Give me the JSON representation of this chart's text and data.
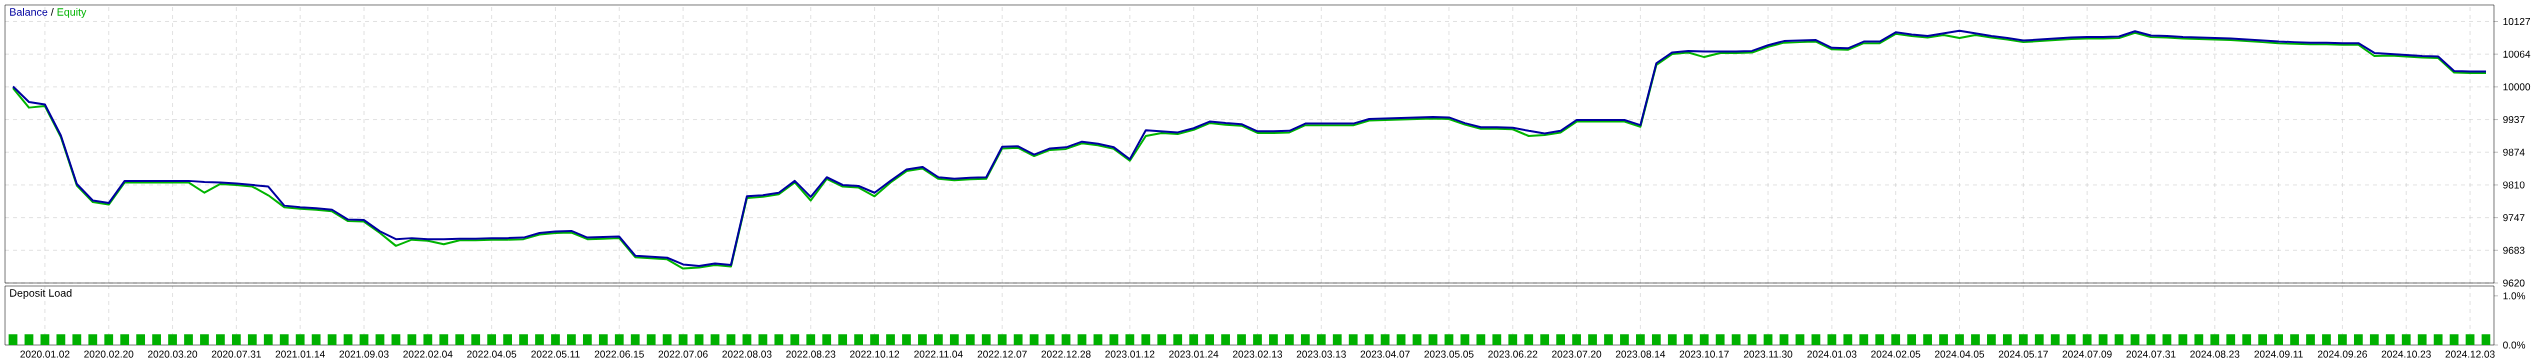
{
  "chart_data": [
    {
      "type": "line",
      "legend": "top left",
      "grid": true,
      "line_style": "solid",
      "tick_labels": "y",
      "annotations": [
        "/"
      ],
      "ylim": [
        9620,
        10159
      ],
      "categories": [
        null,
        null,
        "2020.01.02",
        null,
        null,
        null,
        "2020.02.20",
        null,
        null,
        null,
        "2020.03.20",
        null,
        null,
        null,
        "2020.07.31",
        null,
        null,
        null,
        "2021.01.14",
        null,
        null,
        null,
        "2021.09.03",
        null,
        null,
        null,
        "2022.02.04",
        null,
        null,
        null,
        "2022.04.05",
        null,
        null,
        null,
        "2022.05.11",
        null,
        null,
        null,
        "2022.06.15",
        null,
        null,
        null,
        "2022.07.06",
        null,
        null,
        null,
        "2022.08.03",
        null,
        null,
        null,
        "2022.08.23",
        null,
        null,
        null,
        "2022.10.12",
        null,
        null,
        null,
        "2022.11.04",
        null,
        null,
        null,
        "2022.12.07",
        null,
        null,
        null,
        "2022.12.28",
        null,
        null,
        null,
        "2023.01.12",
        null,
        null,
        null,
        "2023.01.24",
        null,
        null,
        null,
        "2023.02.13",
        null,
        null,
        null,
        "2023.03.13",
        null,
        null,
        null,
        "2023.04.07",
        null,
        null,
        null,
        "2023.05.05",
        null,
        null,
        null,
        "2023.06.22",
        null,
        null,
        null,
        "2023.07.20",
        null,
        null,
        null,
        "2023.08.14",
        null,
        null,
        null,
        "2023.10.17",
        null,
        null,
        null,
        "2023.11.30",
        null,
        null,
        null,
        "2024.01.03",
        null,
        null,
        null,
        "2024.02.05",
        null,
        null,
        null,
        "2024.04.05",
        null,
        null,
        null,
        "2024.05.17",
        null,
        null,
        null,
        "2024.07.09",
        null,
        null,
        null,
        "2024.07.31",
        null,
        null,
        null,
        "2024.08.23",
        null,
        null,
        null,
        "2024.09.11",
        null,
        null,
        null,
        "2024.09.26",
        null,
        null,
        null,
        "2024.10.23",
        null,
        null,
        null,
        "2024.12.03",
        null
      ],
      "yticks": [
        9620,
        {
          "value": 9683.375,
          "label": "9683"
        },
        {
          "value": 9746.75,
          "label": "9747"
        },
        {
          "value": 9810.125,
          "label": "9810"
        },
        {
          "value": 9873.5,
          "label": "9874"
        },
        {
          "value": 9936.875,
          "label": "9937"
        },
        {
          "value": 10000.25,
          "label": "10000"
        },
        {
          "value": 10063.625,
          "label": "10064"
        },
        10127
      ],
      "series": [
        {
          "name": "Balance",
          "color": "#0000a0",
          "values": [
            10001,
            9971,
            9966,
            9906,
            9812,
            9780,
            9775,
            9818,
            9818,
            9818,
            9818,
            9818,
            9816,
            9815,
            9813,
            9810,
            9807,
            9770,
            9767,
            9765,
            9762,
            9743,
            9742,
            9720,
            9705,
            9707,
            9705,
            9705,
            9706,
            9706,
            9707,
            9707,
            9708,
            9717,
            9720,
            9721,
            9708,
            9709,
            9710,
            9673,
            9671,
            9669,
            9656,
            9653,
            9658,
            9655,
            9788,
            9790,
            9795,
            9818,
            9787,
            9825,
            9810,
            9808,
            9795,
            9818,
            9840,
            9845,
            9825,
            9822,
            9824,
            9825,
            9884,
            9885,
            9869,
            9881,
            9883,
            9894,
            9890,
            9883,
            9860,
            9916,
            9914,
            9912,
            9920,
            9933,
            9930,
            9928,
            9914,
            9914,
            9915,
            9929,
            9929,
            9929,
            9929,
            9938,
            9939,
            9940,
            9941,
            9942,
            9941,
            9930,
            9922,
            9922,
            9921,
            9915,
            9910,
            9915,
            9936,
            9936,
            9936,
            9936,
            9926,
            10046,
            10067,
            10070,
            10069,
            10069,
            10069,
            10070,
            10081,
            10089,
            10090,
            10091,
            10076,
            10075,
            10088,
            10088,
            10106,
            10102,
            10099,
            10104,
            10109,
            10104,
            10099,
            10095,
            10090,
            10092,
            10094,
            10096,
            10097,
            10097,
            10098,
            10108,
            10100,
            10099,
            10097,
            10096,
            10095,
            10094,
            10092,
            10090,
            10088,
            10087,
            10086,
            10086,
            10085,
            10085,
            10066,
            10064,
            10062,
            10060,
            10059,
            10031,
            10030,
            10030
          ]
        },
        {
          "name": "Equity",
          "color": "#00b400",
          "values": [
            9998,
            9960,
            9963,
            9903,
            9809,
            9777,
            9772,
            9815,
            9815,
            9815,
            9815,
            9815,
            9795,
            9812,
            9810,
            9807,
            9790,
            9767,
            9764,
            9762,
            9759,
            9740,
            9739,
            9717,
            9692,
            9704,
            9702,
            9695,
            9703,
            9703,
            9704,
            9704,
            9705,
            9714,
            9717,
            9718,
            9705,
            9706,
            9707,
            9670,
            9668,
            9666,
            9648,
            9650,
            9655,
            9652,
            9785,
            9787,
            9792,
            9815,
            9780,
            9822,
            9807,
            9805,
            9788,
            9815,
            9837,
            9842,
            9822,
            9819,
            9821,
            9822,
            9881,
            9882,
            9866,
            9878,
            9880,
            9891,
            9887,
            9880,
            9857,
            9905,
            9911,
            9909,
            9917,
            9930,
            9927,
            9925,
            9911,
            9911,
            9912,
            9926,
            9926,
            9926,
            9926,
            9935,
            9936,
            9937,
            9938,
            9939,
            9938,
            9927,
            9919,
            9919,
            9918,
            9905,
            9907,
            9912,
            9933,
            9933,
            9933,
            9933,
            9923,
            10043,
            10064,
            10067,
            10058,
            10066,
            10066,
            10067,
            10078,
            10086,
            10087,
            10088,
            10073,
            10072,
            10085,
            10085,
            10103,
            10099,
            10096,
            10101,
            10095,
            10101,
            10096,
            10092,
            10087,
            10089,
            10091,
            10093,
            10094,
            10094,
            10095,
            10105,
            10097,
            10096,
            10094,
            10093,
            10092,
            10091,
            10089,
            10087,
            10085,
            10084,
            10083,
            10083,
            10082,
            10082,
            10060,
            10061,
            10059,
            10057,
            10056,
            10028,
            10027,
            10027
          ]
        }
      ]
    },
    {
      "type": "bar",
      "title": "Deposit Load",
      "grid": "x",
      "color": "#00b000",
      "ylim": [
        0,
        1.2
      ],
      "categories": [
        null,
        null,
        "2020.01.02",
        null,
        null,
        null,
        "2020.02.20",
        null,
        null,
        null,
        "2020.03.20",
        null,
        null,
        null,
        "2020.07.31",
        null,
        null,
        null,
        "2021.01.14",
        null,
        null,
        null,
        "2021.09.03",
        null,
        null,
        null,
        "2022.02.04",
        null,
        null,
        null,
        "2022.04.05",
        null,
        null,
        null,
        "2022.05.11",
        null,
        null,
        null,
        "2022.06.15",
        null,
        null,
        null,
        "2022.07.06",
        null,
        null,
        null,
        "2022.08.03",
        null,
        null,
        null,
        "2022.08.23",
        null,
        null,
        null,
        "2022.10.12",
        null,
        null,
        null,
        "2022.11.04",
        null,
        null,
        null,
        "2022.12.07",
        null,
        null,
        null,
        "2022.12.28",
        null,
        null,
        null,
        "2023.01.12",
        null,
        null,
        null,
        "2023.01.24",
        null,
        null,
        null,
        "2023.02.13",
        null,
        null,
        null,
        "2023.03.13",
        null,
        null,
        null,
        "2023.04.07",
        null,
        null,
        null,
        "2023.05.05",
        null,
        null,
        null,
        "2023.06.22",
        null,
        null,
        null,
        "2023.07.20",
        null,
        null,
        null,
        "2023.08.14",
        null,
        null,
        null,
        "2023.10.17",
        null,
        null,
        null,
        "2023.11.30",
        null,
        null,
        null,
        "2024.01.03",
        null,
        null,
        null,
        "2024.02.05",
        null,
        null,
        null,
        "2024.04.05",
        null,
        null,
        null,
        "2024.05.17",
        null,
        null,
        null,
        "2024.07.09",
        null,
        null,
        null,
        "2024.07.31",
        null,
        null,
        null,
        "2024.08.23",
        null,
        null,
        null,
        "2024.09.11",
        null,
        null,
        null,
        "2024.09.26",
        null,
        null,
        null,
        "2024.10.23",
        null,
        null,
        null,
        "2024.12.03",
        null
      ],
      "yticks": [
        {
          "value": 0,
          "label": "0.0%"
        },
        {
          "value": 1,
          "label": "1.0%"
        }
      ],
      "values": [
        0.22,
        0.22,
        0.22,
        0.22,
        0.22,
        0.22,
        0.22,
        0.22,
        0.22,
        0.22,
        0.22,
        0.22,
        0.22,
        0.22,
        0.22,
        0.22,
        0.22,
        0.22,
        0.22,
        0.22,
        0.22,
        0.22,
        0.22,
        0.22,
        0.22,
        0.22,
        0.22,
        0.22,
        0.22,
        0.22,
        0.22,
        0.22,
        0.22,
        0.22,
        0.22,
        0.22,
        0.22,
        0.22,
        0.22,
        0.22,
        0.22,
        0.22,
        0.22,
        0.22,
        0.22,
        0.22,
        0.22,
        0.22,
        0.22,
        0.22,
        0.22,
        0.22,
        0.22,
        0.22,
        0.22,
        0.22,
        0.22,
        0.22,
        0.22,
        0.22,
        0.22,
        0.22,
        0.22,
        0.22,
        0.22,
        0.22,
        0.22,
        0.22,
        0.22,
        0.22,
        0.22,
        0.22,
        0.22,
        0.22,
        0.22,
        0.22,
        0.22,
        0.22,
        0.22,
        0.22,
        0.22,
        0.22,
        0.22,
        0.22,
        0.22,
        0.22,
        0.22,
        0.22,
        0.22,
        0.22,
        0.22,
        0.22,
        0.22,
        0.22,
        0.22,
        0.22,
        0.22,
        0.22,
        0.22,
        0.22,
        0.22,
        0.22,
        0.22,
        0.22,
        0.22,
        0.22,
        0.22,
        0.22,
        0.22,
        0.22,
        0.22,
        0.22,
        0.22,
        0.22,
        0.22,
        0.22,
        0.22,
        0.22,
        0.22,
        0.22,
        0.22,
        0.22,
        0.22,
        0.22,
        0.22,
        0.22,
        0.22,
        0.22,
        0.22,
        0.22,
        0.22,
        0.22,
        0.22,
        0.22,
        0.22,
        0.22,
        0.22,
        0.22,
        0.22,
        0.22,
        0.22,
        0.22,
        0.22,
        0.22,
        0.22,
        0.22,
        0.22,
        0.22,
        0.22,
        0.22,
        0.22,
        0.22,
        0.22,
        0.22,
        0.22,
        0.22
      ]
    }
  ]
}
